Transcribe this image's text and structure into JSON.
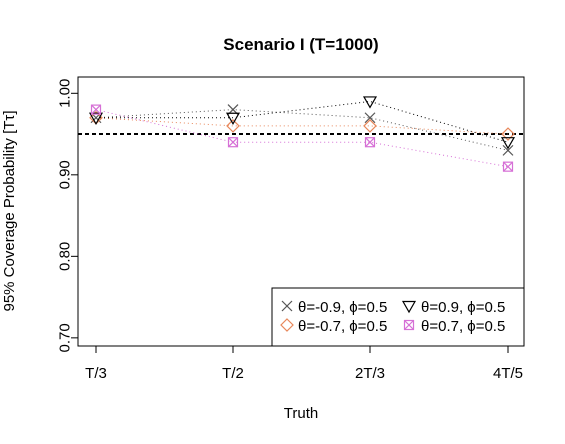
{
  "chart_data": {
    "type": "line",
    "title": "Scenario I (T=1000)",
    "xlabel": "Truth",
    "ylabel": "95% Coverage Probability [Tτ]",
    "categories": [
      "T/3",
      "T/2",
      "2T/3",
      "4T/5"
    ],
    "ylim": [
      0.69,
      1.02
    ],
    "yticks": [
      0.7,
      0.8,
      0.9,
      1.0
    ],
    "ytick_labels": [
      "0.70",
      "0.80",
      "0.90",
      "1.00"
    ],
    "reference_line": 0.95,
    "grid": false,
    "legend_position": "bottom-right",
    "series": [
      {
        "name": "θ=-0.9, ϕ=0.5",
        "marker": "x",
        "color": "#555555",
        "values": [
          0.97,
          0.98,
          0.97,
          0.93
        ]
      },
      {
        "name": "θ=-0.7, ϕ=0.5",
        "marker": "diamond",
        "color": "#E8875A",
        "values": [
          0.97,
          0.96,
          0.96,
          0.95
        ]
      },
      {
        "name": "θ=0.9, ϕ=0.5",
        "marker": "triangle-down",
        "color": "#000000",
        "values": [
          0.97,
          0.97,
          0.99,
          0.94
        ]
      },
      {
        "name": "θ=0.7, ϕ=0.5",
        "marker": "square-x",
        "color": "#D670D6",
        "values": [
          0.98,
          0.94,
          0.94,
          0.91
        ]
      }
    ]
  }
}
